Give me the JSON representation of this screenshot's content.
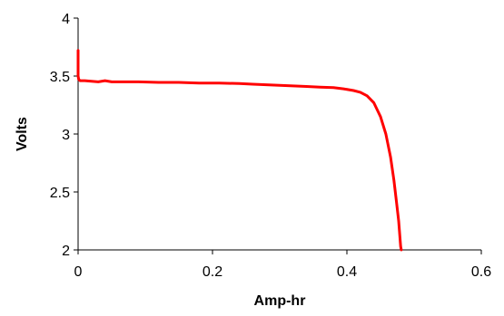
{
  "chart_data": {
    "type": "line",
    "title": "",
    "xlabel": "Amp-hr",
    "ylabel": "Volts",
    "xlim": [
      0,
      0.6
    ],
    "ylim": [
      2,
      4
    ],
    "xticks": [
      0,
      0.2,
      0.4,
      0.6
    ],
    "xtick_labels": [
      "0",
      "0.2",
      "0.4",
      "0.6"
    ],
    "yticks": [
      2,
      2.5,
      3,
      3.5,
      4
    ],
    "ytick_labels": [
      "2",
      "2.5",
      "3",
      "3.5",
      "4"
    ],
    "grid": false,
    "line_color": "#ff0000",
    "series": [
      {
        "x": [
          0,
          0,
          0.001,
          0.003,
          0.01,
          0.02,
          0.03,
          0.04,
          0.05,
          0.07,
          0.09,
          0.12,
          0.15,
          0.18,
          0.21,
          0.24,
          0.26,
          0.28,
          0.3,
          0.32,
          0.34,
          0.36,
          0.38,
          0.395,
          0.41,
          0.42,
          0.43,
          0.44,
          0.45,
          0.458,
          0.465,
          0.47,
          0.474,
          0.477,
          0.479,
          0.48,
          0.481
        ],
        "y": [
          3.72,
          3.5,
          3.47,
          3.46,
          3.46,
          3.455,
          3.45,
          3.46,
          3.45,
          3.45,
          3.45,
          3.445,
          3.445,
          3.44,
          3.44,
          3.435,
          3.43,
          3.425,
          3.42,
          3.415,
          3.41,
          3.405,
          3.4,
          3.39,
          3.375,
          3.36,
          3.33,
          3.27,
          3.15,
          3.0,
          2.8,
          2.6,
          2.4,
          2.25,
          2.1,
          2.03,
          2.0
        ]
      }
    ]
  }
}
